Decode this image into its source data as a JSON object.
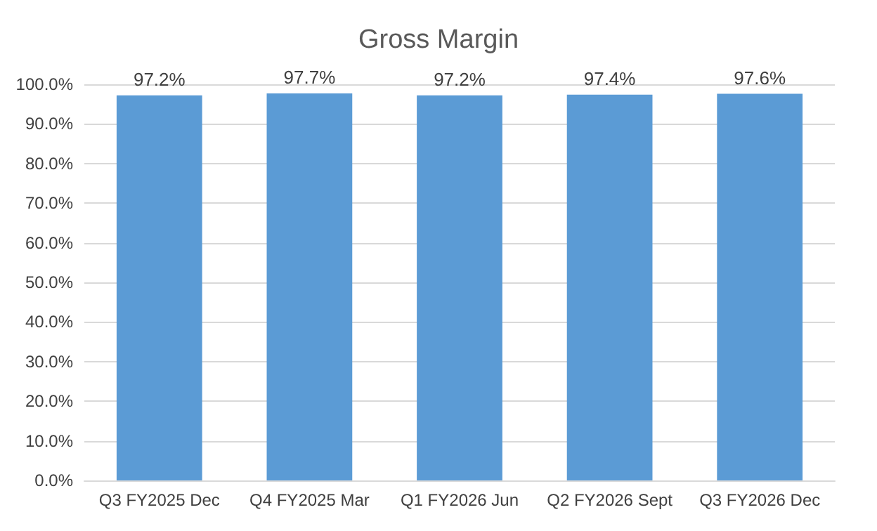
{
  "chart_data": {
    "type": "bar",
    "title": "Gross Margin",
    "categories": [
      "Q3 FY2025 Dec",
      "Q4 FY2025 Mar",
      "Q1 FY2026 Jun",
      "Q2 FY2026 Sept",
      "Q3 FY2026 Dec"
    ],
    "values": [
      97.2,
      97.7,
      97.2,
      97.4,
      97.6
    ],
    "value_labels": [
      "97.2%",
      "97.7%",
      "97.2%",
      "97.4%",
      "97.6%"
    ],
    "color": "#5b9bd5",
    "ylim": [
      0,
      100
    ],
    "yticks": [
      {
        "value": 0,
        "label": "0.0%"
      },
      {
        "value": 10,
        "label": "10.0%"
      },
      {
        "value": 20,
        "label": "20.0%"
      },
      {
        "value": 30,
        "label": "30.0%"
      },
      {
        "value": 40,
        "label": "40.0%"
      },
      {
        "value": 50,
        "label": "50.0%"
      },
      {
        "value": 60,
        "label": "60.0%"
      },
      {
        "value": 70,
        "label": "70.0%"
      },
      {
        "value": 80,
        "label": "80.0%"
      },
      {
        "value": 90,
        "label": "90.0%"
      },
      {
        "value": 100,
        "label": "100.0%"
      }
    ],
    "grid": "y"
  }
}
